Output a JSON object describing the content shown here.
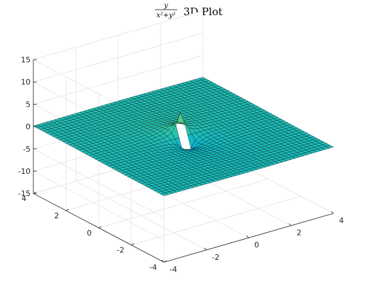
{
  "chart_data": {
    "type": "surface3d",
    "title": {
      "numerator": "y",
      "denominator": "x²+y²",
      "suffix": "3D Plot"
    },
    "function": "z = y / (x^2 + y^2)",
    "x_range": [
      -4,
      4
    ],
    "y_range": [
      -4,
      4
    ],
    "z_range": [
      -15,
      15
    ],
    "z_clip": [
      -15,
      15
    ],
    "x_ticks": [
      -4,
      -2,
      0,
      2,
      4
    ],
    "y_ticks": [
      -4,
      -2,
      0,
      2,
      4
    ],
    "z_ticks": [
      -15,
      -10,
      -5,
      0,
      5,
      10,
      15
    ],
    "x_tick_labels": [
      "-4",
      "-2",
      "0",
      "2",
      "4"
    ],
    "y_tick_labels": [
      "-4",
      "-2",
      "0",
      "2",
      "4"
    ],
    "z_tick_labels": [
      "-15",
      "-10",
      "-5",
      "0",
      "5",
      "10",
      "15"
    ],
    "grid_step": 0.2,
    "colormap": "parula",
    "grid": true
  }
}
